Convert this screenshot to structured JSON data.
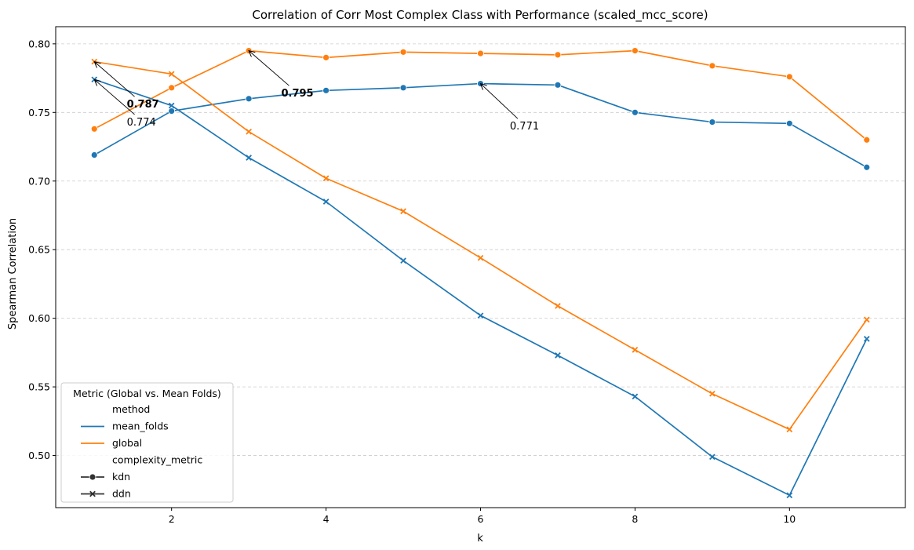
{
  "chart_data": {
    "type": "line",
    "title": "Correlation of Corr Most Complex Class with Performance (scaled_mcc_score)",
    "xlabel": "k",
    "ylabel": "Spearman Correlation",
    "xlim": [
      0.5,
      11.5
    ],
    "ylim": [
      0.462,
      0.8125
    ],
    "xticks": [
      2,
      4,
      6,
      8,
      10
    ],
    "yticks": [
      0.5,
      0.55,
      0.6,
      0.65,
      0.7,
      0.75,
      0.8
    ],
    "ytick_labels": [
      "0.50",
      "0.55",
      "0.60",
      "0.65",
      "0.70",
      "0.75",
      "0.80"
    ],
    "grid": "horizontal dashed",
    "colors": {
      "mean_folds": "#1f77b4",
      "global": "#ff7f0e"
    },
    "x": [
      1,
      2,
      3,
      4,
      5,
      6,
      7,
      8,
      9,
      10,
      11
    ],
    "series": [
      {
        "method": "mean_folds",
        "metric": "kdn",
        "marker": "circle",
        "values": [
          0.719,
          0.751,
          0.76,
          0.766,
          0.768,
          0.771,
          0.77,
          0.75,
          0.743,
          0.742,
          0.71
        ]
      },
      {
        "method": "global",
        "metric": "kdn",
        "marker": "circle",
        "values": [
          0.738,
          0.768,
          0.795,
          0.79,
          0.794,
          0.793,
          0.792,
          0.795,
          0.784,
          0.776,
          0.73
        ]
      },
      {
        "method": "mean_folds",
        "metric": "ddn",
        "marker": "x",
        "values": [
          0.774,
          0.755,
          0.717,
          0.685,
          0.642,
          0.602,
          0.573,
          0.543,
          0.499,
          0.471,
          0.585
        ]
      },
      {
        "method": "global",
        "metric": "ddn",
        "marker": "x",
        "values": [
          0.787,
          0.778,
          0.736,
          0.702,
          0.678,
          0.644,
          0.609,
          0.577,
          0.545,
          0.519,
          0.599
        ]
      }
    ],
    "annotations": [
      {
        "text": "0.787",
        "bold": true,
        "x": 1,
        "y": 0.787,
        "text_x": 1.42,
        "text_y": 0.7535
      },
      {
        "text": "0.774",
        "bold": false,
        "x": 1,
        "y": 0.774,
        "text_x": 1.42,
        "text_y": 0.7405
      },
      {
        "text": "0.795",
        "bold": true,
        "x": 3,
        "y": 0.795,
        "text_x": 3.42,
        "text_y": 0.7615
      },
      {
        "text": "0.771",
        "bold": false,
        "x": 6,
        "y": 0.771,
        "text_x": 6.38,
        "text_y": 0.7375
      }
    ],
    "legend": {
      "position": "lower-left",
      "title": "Metric (Global vs. Mean Folds)",
      "entries": [
        {
          "label": "method",
          "kind": "header"
        },
        {
          "label": "mean_folds",
          "kind": "line",
          "color": "#1f77b4"
        },
        {
          "label": "global",
          "kind": "line",
          "color": "#ff7f0e"
        },
        {
          "label": "complexity_metric",
          "kind": "header"
        },
        {
          "label": "kdn",
          "kind": "marker",
          "marker": "circle",
          "color": "#333333"
        },
        {
          "label": "ddn",
          "kind": "marker",
          "marker": "x",
          "color": "#333333"
        }
      ]
    }
  }
}
